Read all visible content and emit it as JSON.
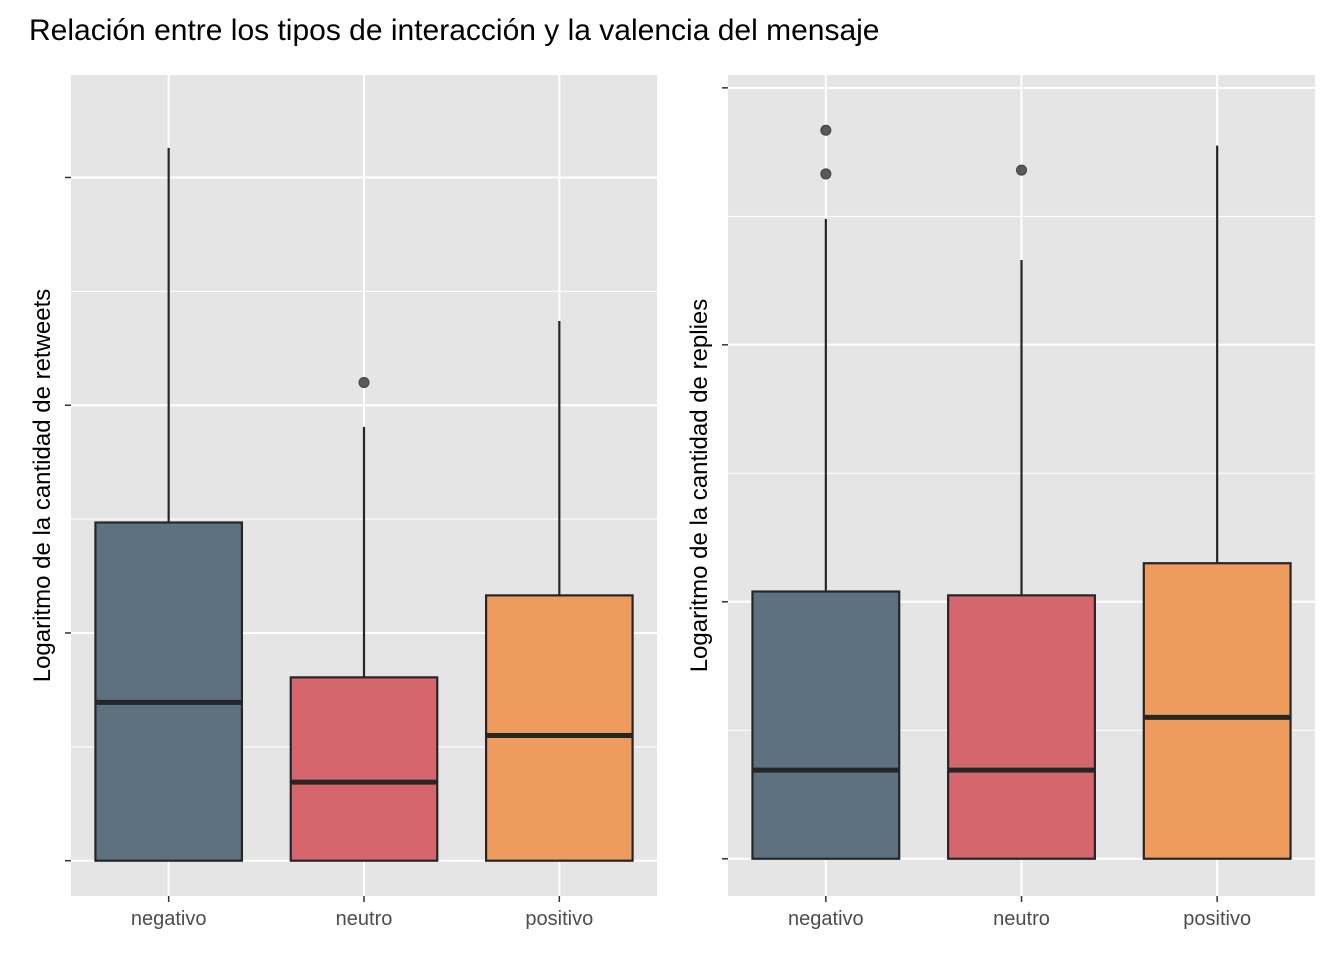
{
  "title": "Relación entre los tipos de interacción y la valencia del mensaje",
  "colors": {
    "panel_bg": "#e5e5e5",
    "grid": "#ffffff",
    "box_outline": "#262626",
    "outlier": "#5a5a5a",
    "negativo": "#5d7180",
    "neutro": "#d6666d",
    "positivo": "#ee9b5e"
  },
  "chart_data": [
    {
      "type": "boxplot",
      "ylabel": "Logaritmo de la cantidad de retweets",
      "categories": [
        "negativo",
        "neutro",
        "positivo"
      ],
      "ylim": [
        -0.31,
        6.9
      ],
      "y_gridlines_major": [
        0,
        2,
        4,
        6
      ],
      "y_gridlines_minor": [
        1,
        3,
        5
      ],
      "grid": true,
      "legend": "none",
      "boxes": [
        {
          "category": "negativo",
          "min": 0,
          "q1": 0,
          "median": 1.39,
          "q3": 2.97,
          "max": 6.26,
          "outliers": []
        },
        {
          "category": "neutro",
          "min": 0,
          "q1": 0,
          "median": 0.69,
          "q3": 1.61,
          "max": 3.81,
          "outliers": [
            4.2
          ]
        },
        {
          "category": "positivo",
          "min": 0,
          "q1": 0,
          "median": 1.1,
          "q3": 2.33,
          "max": 4.74,
          "outliers": []
        }
      ]
    },
    {
      "type": "boxplot",
      "ylabel": "Logaritmo de la cantidad de replies",
      "categories": [
        "negativo",
        "neutro",
        "positivo"
      ],
      "ylim": [
        -0.29,
        6.1
      ],
      "y_gridlines_major": [
        0,
        2,
        4,
        6
      ],
      "y_gridlines_minor": [
        1,
        3,
        5
      ],
      "grid": true,
      "legend": "none",
      "boxes": [
        {
          "category": "negativo",
          "min": 0,
          "q1": 0,
          "median": 0.69,
          "q3": 2.08,
          "max": 4.98,
          "outliers": [
            5.33,
            5.67
          ]
        },
        {
          "category": "neutro",
          "min": 0,
          "q1": 0,
          "median": 0.69,
          "q3": 2.05,
          "max": 4.66,
          "outliers": [
            5.36
          ]
        },
        {
          "category": "positivo",
          "min": 0,
          "q1": 0,
          "median": 1.1,
          "q3": 2.3,
          "max": 5.55,
          "outliers": []
        }
      ]
    }
  ]
}
